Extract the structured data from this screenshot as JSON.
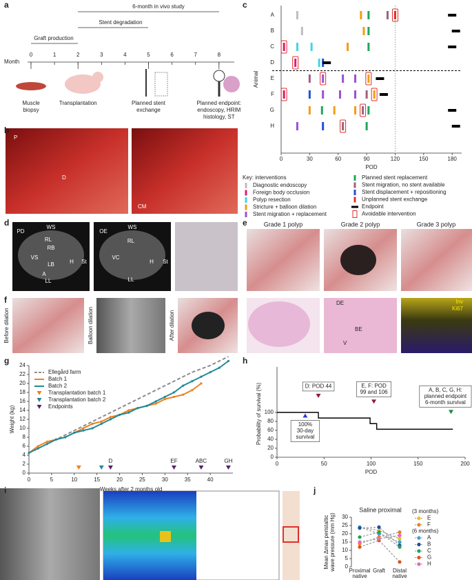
{
  "panels": {
    "a": {
      "label": "a",
      "study": "6-month in vivo study",
      "degradation": "Stent degradation",
      "production": "Graft production",
      "axis_label": "Month",
      "months": [
        0,
        1,
        2,
        3,
        4,
        5,
        6,
        7,
        8
      ],
      "steps": [
        {
          "lines": [
            "Muscle",
            "biopsy"
          ]
        },
        {
          "lines": [
            "Transplantation"
          ]
        },
        {
          "lines": [
            "Planned stent",
            "exchange"
          ]
        },
        {
          "lines": [
            "Planned endpoint:",
            "endoscopy, HRIM",
            "histology, ST"
          ]
        }
      ]
    },
    "b": {
      "label": "b",
      "tags": [
        "P",
        "D",
        "CM"
      ]
    },
    "d": {
      "label": "d",
      "ct1": [
        "WS",
        "PD",
        "RL",
        "RB",
        "VS",
        "LB",
        "A",
        "LL",
        "H",
        "St"
      ],
      "ct2": [
        "WS",
        "OE",
        "RL",
        "VC",
        "H",
        "St",
        "LL"
      ]
    },
    "e": {
      "label": "e",
      "grades": [
        "Grade 1 polyp",
        "Grade 2 polyp",
        "Grade 3 polyp"
      ],
      "histo": [
        "DE",
        "BE",
        "V"
      ],
      "stain": [
        "Inv",
        "Ki67"
      ]
    },
    "f": {
      "label": "f",
      "views": [
        "Before dilation",
        "Balloon dilation",
        "After dilation"
      ]
    },
    "i": {
      "label": "i"
    }
  },
  "chart_data": [
    {
      "type": "timeline",
      "label": "c",
      "xlabel": "POD",
      "ylabel": "Animal",
      "categories": [
        "A",
        "B",
        "C",
        "D",
        "E",
        "F",
        "G",
        "H"
      ],
      "xlim": [
        0,
        190
      ],
      "xticks": [
        0,
        30,
        60,
        90,
        120,
        150,
        180
      ],
      "ref_line": 120,
      "legend_title": "Key: interventions",
      "series": [
        {
          "name": "Diagnostic endoscopy",
          "color": "#bdbdbd"
        },
        {
          "name": "Foreign body occlusion",
          "color": "#e0197d"
        },
        {
          "name": "Polyp resection",
          "color": "#3dd6e8"
        },
        {
          "name": "Stricture + balloon dilation",
          "color": "#f39c12"
        },
        {
          "name": "Stent migration + replacement",
          "color": "#9b4fd6"
        },
        {
          "name": "Planned stent replacement",
          "color": "#1fa55b"
        },
        {
          "name": "Stent migration, no stent available",
          "color": "#a0607a"
        },
        {
          "name": "Stent displacement + repositioning",
          "color": "#1f4fd6"
        },
        {
          "name": "Unplanned stent exchange",
          "color": "#e0302a"
        },
        {
          "name": "Endpoint",
          "color": "#000000"
        },
        {
          "name": "Avoidable intervention",
          "color": "#e0302a"
        }
      ],
      "rows": [
        {
          "pod": [
            17,
            84,
            92,
            112,
            120,
            180
          ],
          "kind": [
            0,
            3,
            5,
            6,
            8,
            9
          ],
          "avoidable": [
            120
          ]
        },
        {
          "pod": [
            22,
            87,
            92,
            184
          ],
          "kind": [
            0,
            3,
            5,
            9
          ],
          "avoidable": []
        },
        {
          "pod": [
            3,
            17,
            32,
            70,
            92,
            180
          ],
          "kind": [
            1,
            2,
            2,
            3,
            5,
            9
          ],
          "avoidable": [
            3
          ]
        },
        {
          "pod": [
            15,
            40,
            44,
            48
          ],
          "kind": [
            1,
            2,
            7,
            9
          ],
          "avoidable": [
            15
          ]
        },
        {
          "pod": [
            30,
            44,
            65,
            78,
            92,
            104
          ],
          "kind": [
            6,
            4,
            4,
            4,
            3,
            9
          ],
          "avoidable": [
            44,
            92
          ]
        },
        {
          "pod": [
            3,
            30,
            44,
            62,
            78,
            90,
            98,
            108
          ],
          "kind": [
            1,
            7,
            4,
            4,
            4,
            6,
            3,
            9
          ],
          "avoidable": [
            3,
            98
          ]
        },
        {
          "pod": [
            30,
            43,
            56,
            78,
            86,
            92,
            180
          ],
          "kind": [
            3,
            5,
            3,
            3,
            6,
            5,
            9
          ],
          "avoidable": [
            86
          ]
        },
        {
          "pod": [
            17,
            44,
            65,
            90,
            184
          ],
          "kind": [
            4,
            7,
            6,
            5,
            9
          ],
          "avoidable": [
            65
          ]
        }
      ]
    },
    {
      "type": "line",
      "label": "g",
      "xlabel": "Weeks after 2 months old",
      "ylabel": "Weight (kg)",
      "xlim": [
        0,
        45
      ],
      "ylim": [
        0,
        24
      ],
      "xticks": [
        0,
        5,
        10,
        15,
        20,
        25,
        30,
        35,
        40
      ],
      "yticks": [
        0,
        2,
        4,
        6,
        8,
        10,
        12,
        14,
        16,
        18,
        20,
        22,
        24
      ],
      "series": [
        {
          "name": "Ellegård farm",
          "color": "#8c8c8c",
          "line_style": "dashed",
          "x": [
            0,
            4,
            8,
            12,
            16,
            20,
            24,
            28,
            32,
            36,
            40,
            44
          ],
          "values": [
            4.5,
            6.5,
            8.5,
            10.5,
            12.5,
            14.5,
            16.5,
            18.5,
            20.5,
            22.5,
            24,
            26
          ]
        },
        {
          "name": "Batch 1",
          "color": "#f07f1f",
          "line_style": "solid",
          "x": [
            0,
            2,
            4,
            6,
            8,
            10,
            12,
            14,
            16,
            18,
            20,
            22,
            24,
            26,
            28,
            30,
            32,
            34,
            36,
            38
          ],
          "values": [
            4.5,
            6,
            7,
            7.5,
            8,
            9,
            10,
            11,
            11.5,
            12.5,
            13,
            14,
            14.5,
            15,
            15.5,
            16.5,
            17,
            17.5,
            18.5,
            20
          ]
        },
        {
          "name": "Batch 2",
          "color": "#1f8a9a",
          "line_style": "solid",
          "x": [
            0,
            2,
            4,
            6,
            8,
            10,
            12,
            14,
            16,
            18,
            20,
            22,
            24,
            26,
            28,
            30,
            32,
            34,
            36,
            38,
            40,
            42,
            44
          ],
          "values": [
            4.5,
            5.5,
            6.5,
            7.5,
            8,
            9,
            9.5,
            10,
            11,
            12,
            13,
            13.5,
            14.5,
            15,
            16,
            17,
            18,
            19.5,
            20.5,
            21.5,
            22.5,
            23.5,
            25
          ]
        }
      ],
      "markers": [
        {
          "name": "Transplantation batch 1",
          "color": "#f07f1f",
          "x": [
            11
          ]
        },
        {
          "name": "Transplantation batch 2",
          "color": "#1f8a9a",
          "x": [
            16
          ]
        },
        {
          "name": "Endpoints",
          "color": "#5c1e6e",
          "x": [
            18,
            32,
            38,
            44
          ],
          "labels": [
            "D",
            "EF",
            "ABC",
            "GH"
          ]
        }
      ]
    },
    {
      "type": "step",
      "label": "h",
      "xlabel": "POD",
      "ylabel": "Probability of survival (%)",
      "xlim": [
        0,
        200
      ],
      "ylim": [
        0,
        100
      ],
      "xticks": [
        0,
        50,
        100,
        150,
        200
      ],
      "yticks": [
        0,
        20,
        40,
        60,
        80,
        100
      ],
      "color": "#000000",
      "x": [
        0,
        44,
        44,
        99,
        99,
        106,
        106,
        187
      ],
      "values": [
        100,
        100,
        87.5,
        87.5,
        75,
        75,
        62.5,
        62.5
      ],
      "annotations": [
        {
          "lines": [
            "100%",
            "30-day",
            "survival"
          ],
          "x": 30,
          "y": 93,
          "color": "#2a3fd6",
          "below": true
        },
        {
          "lines": [
            "D: POD 44"
          ],
          "x": 44,
          "y": 137,
          "color": "#8b1a4a",
          "below": false
        },
        {
          "lines": [
            "E, F: POD",
            "99 and 106"
          ],
          "x": 103,
          "y": 124,
          "color": "#8b1a4a",
          "below": false
        },
        {
          "lines": [
            "A, B, C, G, H:",
            "planned endpoint",
            "6-month survival"
          ],
          "x": 185,
          "y": 101,
          "color": "#1f8a4c",
          "below": false
        }
      ]
    },
    {
      "type": "paired",
      "label": "j",
      "title": "Saline proximal",
      "ylabel": [
        "Mean Δmax peristaltic",
        "wave pressure (mm Hg)"
      ],
      "categories": [
        [
          "Proximal",
          "native"
        ],
        [
          "Graft"
        ],
        [
          "Distal",
          "native"
        ]
      ],
      "ylim": [
        0,
        30
      ],
      "yticks": [
        0,
        5,
        10,
        15,
        20,
        25,
        30
      ],
      "groups": [
        {
          "label": "(3 months)",
          "series": [
            {
              "name": "E",
              "color": "#e8c21a",
              "values": [
                24,
                22,
                17
              ]
            },
            {
              "name": "F",
              "color": "#f07f1f",
              "values": [
                14,
                18,
                21
              ]
            }
          ]
        },
        {
          "label": "(6 months)",
          "series": [
            {
              "name": "A",
              "color": "#3aa0e0",
              "values": [
                24,
                20,
                15
              ]
            },
            {
              "name": "B",
              "color": "#1f4f9a",
              "values": [
                23.5,
                24,
                13
              ]
            },
            {
              "name": "C",
              "color": "#1fa55b",
              "values": [
                18,
                21,
                12
              ]
            },
            {
              "name": "G",
              "color": "#e0531f",
              "values": [
                12,
                16,
                3
              ]
            },
            {
              "name": "H",
              "color": "#e06fb0",
              "values": [
                15,
                17,
                19
              ]
            }
          ]
        }
      ]
    }
  ]
}
